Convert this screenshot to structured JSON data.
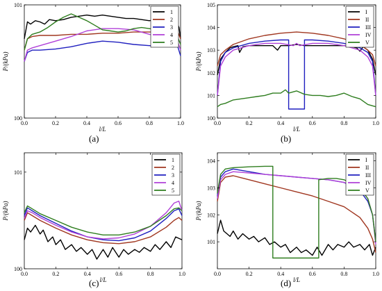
{
  "panels": [
    {
      "id": "a",
      "label": "(a)"
    },
    {
      "id": "b",
      "label": "(b)"
    },
    {
      "id": "c",
      "label": "(c)"
    },
    {
      "id": "d",
      "label": "(d)"
    }
  ],
  "chart_data": [
    {
      "id": "a",
      "type": "line",
      "xlabel": "l/L",
      "ylabel": "P/(kPa)",
      "xlim": [
        0,
        1
      ],
      "ylim": [
        100,
        101
      ],
      "xticks": [
        "0.0",
        "0.2",
        "0.4",
        "0.6",
        "0.8",
        "1.0"
      ],
      "yticks": [
        {
          "v": 100,
          "t": "100"
        },
        {
          "v": 101,
          "t": "101"
        }
      ],
      "legend": "top-right",
      "grid": false,
      "series": [
        {
          "name": "1",
          "color": "#000000",
          "x": [
            0,
            0.02,
            0.04,
            0.07,
            0.1,
            0.13,
            0.16,
            0.2,
            0.25,
            0.3,
            0.35,
            0.4,
            0.45,
            0.5,
            0.55,
            0.6,
            0.65,
            0.7,
            0.75,
            0.8,
            0.85,
            0.9,
            0.94,
            0.97,
            0.99,
            1.0
          ],
          "y": [
            100.7,
            100.85,
            100.83,
            100.86,
            100.85,
            100.83,
            100.87,
            100.86,
            100.87,
            100.89,
            100.9,
            100.91,
            100.9,
            100.91,
            100.9,
            100.89,
            100.88,
            100.88,
            100.87,
            100.86,
            100.87,
            100.86,
            100.85,
            100.86,
            100.8,
            100.7
          ]
        },
        {
          "name": "2",
          "color": "#a0361f",
          "x": [
            0,
            0.02,
            0.05,
            0.1,
            0.2,
            0.3,
            0.4,
            0.5,
            0.6,
            0.7,
            0.8,
            0.9,
            0.95,
            0.98,
            1.0
          ],
          "y": [
            100.6,
            100.7,
            100.72,
            100.73,
            100.73,
            100.74,
            100.74,
            100.75,
            100.75,
            100.76,
            100.76,
            100.76,
            100.77,
            100.77,
            100.7
          ]
        },
        {
          "name": "3",
          "color": "#1f1fbf",
          "x": [
            0,
            0.02,
            0.05,
            0.1,
            0.2,
            0.3,
            0.4,
            0.5,
            0.6,
            0.7,
            0.8,
            0.9,
            0.95,
            0.98,
            1.0
          ],
          "y": [
            100.5,
            100.58,
            100.6,
            100.6,
            100.61,
            100.63,
            100.66,
            100.68,
            100.67,
            100.65,
            100.64,
            100.64,
            100.65,
            100.64,
            100.55
          ]
        },
        {
          "name": "4",
          "color": "#b040d8",
          "x": [
            0,
            0.02,
            0.05,
            0.1,
            0.2,
            0.3,
            0.4,
            0.5,
            0.6,
            0.7,
            0.8,
            0.9,
            0.95,
            0.98,
            1.0
          ],
          "y": [
            100.5,
            100.6,
            100.62,
            100.64,
            100.68,
            100.72,
            100.77,
            100.79,
            100.79,
            100.78,
            100.74,
            100.71,
            100.7,
            100.68,
            100.6
          ]
        },
        {
          "name": "5",
          "color": "#2e7d1e",
          "x": [
            0,
            0.02,
            0.05,
            0.1,
            0.15,
            0.2,
            0.25,
            0.3,
            0.35,
            0.4,
            0.45,
            0.5,
            0.55,
            0.6,
            0.65,
            0.7,
            0.75,
            0.8,
            0.85,
            0.9,
            0.95,
            0.98,
            1.0
          ],
          "y": [
            100.6,
            100.7,
            100.74,
            100.76,
            100.8,
            100.85,
            100.89,
            100.92,
            100.89,
            100.86,
            100.82,
            100.78,
            100.77,
            100.76,
            100.77,
            100.79,
            100.8,
            100.79,
            100.78,
            100.77,
            100.75,
            100.72,
            100.65
          ]
        }
      ]
    },
    {
      "id": "b",
      "type": "line",
      "xlabel": "l/L",
      "ylabel": "P/(kPa)",
      "xlim": [
        0,
        1
      ],
      "ylim": [
        100,
        105
      ],
      "xticks": [
        "0.0",
        "0.2",
        "0.4",
        "0.6",
        "0.8",
        "1.0"
      ],
      "yticks": [
        {
          "v": 100,
          "t": "100"
        },
        {
          "v": 101,
          "t": "101"
        },
        {
          "v": 102,
          "t": "102"
        },
        {
          "v": 103,
          "t": "103"
        },
        {
          "v": 104,
          "t": "104"
        },
        {
          "v": 105,
          "t": "105"
        }
      ],
      "legend": "top-right",
      "grid": false,
      "series": [
        {
          "name": "I",
          "color": "#000000",
          "x": [
            0,
            0.02,
            0.05,
            0.08,
            0.1,
            0.13,
            0.14,
            0.16,
            0.2,
            0.25,
            0.3,
            0.35,
            0.38,
            0.4,
            0.45,
            0.5,
            0.55,
            0.6,
            0.65,
            0.7,
            0.75,
            0.8,
            0.85,
            0.88,
            0.9,
            0.92,
            0.95,
            0.98,
            1.0
          ],
          "y": [
            101.9,
            102.6,
            102.9,
            103.1,
            103.15,
            103.2,
            102.9,
            103.15,
            103.2,
            103.2,
            103.2,
            103.2,
            103.0,
            103.2,
            103.2,
            103.25,
            103.2,
            103.2,
            103.2,
            103.2,
            103.2,
            103.2,
            103.15,
            103.1,
            102.95,
            103.15,
            103.0,
            102.6,
            101.9
          ]
        },
        {
          "name": "II",
          "color": "#a0361f",
          "x": [
            0,
            0.02,
            0.05,
            0.1,
            0.2,
            0.3,
            0.4,
            0.5,
            0.6,
            0.7,
            0.8,
            0.9,
            0.95,
            0.98,
            1.0
          ],
          "y": [
            102.3,
            102.8,
            103.0,
            103.25,
            103.5,
            103.65,
            103.75,
            103.8,
            103.75,
            103.65,
            103.5,
            103.25,
            103.0,
            102.8,
            102.3
          ]
        },
        {
          "name": "III",
          "color": "#1f1fbf",
          "x": [
            0,
            0.02,
            0.05,
            0.1,
            0.2,
            0.3,
            0.4,
            0.45,
            0.45,
            0.55,
            0.55,
            0.6,
            0.7,
            0.8,
            0.9,
            0.95,
            0.98,
            1.0
          ],
          "y": [
            101.0,
            102.5,
            102.9,
            103.1,
            103.3,
            103.4,
            103.45,
            103.45,
            100.4,
            100.4,
            103.45,
            103.45,
            103.4,
            103.3,
            103.1,
            102.9,
            102.5,
            101.0
          ]
        },
        {
          "name": "IV",
          "color": "#b040d8",
          "x": [
            0,
            0.02,
            0.05,
            0.1,
            0.2,
            0.3,
            0.4,
            0.48,
            0.5,
            0.52,
            0.6,
            0.7,
            0.8,
            0.9,
            0.95,
            0.98,
            1.0
          ],
          "y": [
            101.0,
            102.3,
            102.7,
            103.0,
            103.2,
            103.3,
            103.3,
            103.2,
            103.3,
            103.2,
            103.3,
            103.3,
            103.2,
            103.0,
            102.7,
            102.3,
            101.0
          ]
        },
        {
          "name": "V",
          "color": "#2e7d1e",
          "x": [
            0,
            0.02,
            0.05,
            0.1,
            0.15,
            0.2,
            0.25,
            0.3,
            0.35,
            0.4,
            0.43,
            0.45,
            0.5,
            0.55,
            0.6,
            0.65,
            0.7,
            0.75,
            0.8,
            0.85,
            0.9,
            0.95,
            1.0
          ],
          "y": [
            100.5,
            100.6,
            100.65,
            100.8,
            100.85,
            100.9,
            100.95,
            101.0,
            101.1,
            101.1,
            101.25,
            101.1,
            101.2,
            101.05,
            101.0,
            101.0,
            100.95,
            101.0,
            101.1,
            100.95,
            100.85,
            100.6,
            100.5
          ]
        }
      ]
    },
    {
      "id": "c",
      "type": "line",
      "xlabel": "l/L",
      "ylabel": "P/(kPa)",
      "xlim": [
        0,
        1
      ],
      "ylim": [
        100,
        101.2
      ],
      "xticks": [
        "0.0",
        "0.2",
        "0.4",
        "0.6",
        "0.8",
        "1.0"
      ],
      "yticks": [
        {
          "v": 100,
          "t": "100"
        },
        {
          "v": 101,
          "t": "101"
        }
      ],
      "legend": "top-right",
      "grid": false,
      "series": [
        {
          "name": "1",
          "color": "#000000",
          "x": [
            0,
            0.02,
            0.04,
            0.07,
            0.1,
            0.12,
            0.15,
            0.18,
            0.2,
            0.23,
            0.26,
            0.3,
            0.33,
            0.36,
            0.4,
            0.43,
            0.46,
            0.5,
            0.53,
            0.56,
            0.6,
            0.63,
            0.66,
            0.7,
            0.73,
            0.76,
            0.8,
            0.83,
            0.86,
            0.9,
            0.93,
            0.96,
            1.0
          ],
          "y": [
            100.3,
            100.42,
            100.38,
            100.45,
            100.36,
            100.4,
            100.28,
            100.33,
            100.25,
            100.3,
            100.2,
            100.25,
            100.18,
            100.22,
            100.15,
            100.2,
            100.1,
            100.2,
            100.12,
            100.22,
            100.12,
            100.2,
            100.15,
            100.2,
            100.17,
            100.22,
            100.18,
            100.25,
            100.2,
            100.28,
            100.22,
            100.33,
            100.3
          ]
        },
        {
          "name": "2",
          "color": "#a0361f",
          "x": [
            0,
            0.02,
            0.05,
            0.1,
            0.2,
            0.3,
            0.4,
            0.5,
            0.6,
            0.7,
            0.8,
            0.9,
            0.95,
            0.98,
            1.0
          ],
          "y": [
            100.5,
            100.58,
            100.55,
            100.5,
            100.42,
            100.35,
            100.3,
            100.27,
            100.26,
            100.28,
            100.33,
            100.43,
            100.5,
            100.53,
            100.5
          ]
        },
        {
          "name": "3",
          "color": "#1f1fbf",
          "x": [
            0,
            0.02,
            0.05,
            0.1,
            0.2,
            0.3,
            0.4,
            0.5,
            0.6,
            0.7,
            0.8,
            0.9,
            0.95,
            0.98,
            1.0
          ],
          "y": [
            100.55,
            100.63,
            100.6,
            100.55,
            100.47,
            100.39,
            100.33,
            100.3,
            100.29,
            100.32,
            100.39,
            100.52,
            100.6,
            100.62,
            100.55
          ]
        },
        {
          "name": "4",
          "color": "#b040d8",
          "x": [
            0,
            0.02,
            0.05,
            0.1,
            0.2,
            0.3,
            0.4,
            0.5,
            0.6,
            0.7,
            0.8,
            0.9,
            0.95,
            0.98,
            1.0
          ],
          "y": [
            100.52,
            100.6,
            100.58,
            100.53,
            100.45,
            100.38,
            100.33,
            100.31,
            100.32,
            100.36,
            100.44,
            100.58,
            100.68,
            100.7,
            100.6
          ]
        },
        {
          "name": "5",
          "color": "#2e7d1e",
          "x": [
            0,
            0.02,
            0.05,
            0.1,
            0.2,
            0.3,
            0.4,
            0.5,
            0.6,
            0.7,
            0.8,
            0.9,
            0.95,
            0.98,
            1.0
          ],
          "y": [
            100.58,
            100.65,
            100.62,
            100.57,
            100.5,
            100.43,
            100.38,
            100.35,
            100.35,
            100.38,
            100.44,
            100.55,
            100.62,
            100.63,
            100.6
          ]
        }
      ]
    },
    {
      "id": "d",
      "type": "line",
      "xlabel": "l/L",
      "ylabel": "P/(kPa)",
      "xlim": [
        0,
        1
      ],
      "ylim": [
        100,
        104.3
      ],
      "xticks": [
        "0.0",
        "0.2",
        "0.4",
        "0.6",
        "0.8",
        "1.0"
      ],
      "yticks": [
        {
          "v": 101,
          "t": "101"
        },
        {
          "v": 102,
          "t": "102"
        },
        {
          "v": 103,
          "t": "103"
        },
        {
          "v": 104,
          "t": "104"
        }
      ],
      "legend": "top-right",
      "grid": false,
      "series": [
        {
          "name": "I",
          "color": "#000000",
          "x": [
            0,
            0.02,
            0.04,
            0.06,
            0.08,
            0.1,
            0.13,
            0.16,
            0.2,
            0.23,
            0.26,
            0.3,
            0.33,
            0.36,
            0.4,
            0.43,
            0.46,
            0.5,
            0.53,
            0.56,
            0.6,
            0.63,
            0.66,
            0.7,
            0.73,
            0.76,
            0.8,
            0.83,
            0.86,
            0.9,
            0.93,
            0.96,
            0.98,
            1.0
          ],
          "y": [
            101.3,
            101.8,
            101.4,
            101.3,
            101.2,
            101.4,
            101.1,
            101.3,
            101.1,
            101.2,
            101.0,
            101.15,
            100.9,
            101.0,
            100.8,
            100.9,
            100.6,
            100.8,
            100.6,
            100.7,
            100.5,
            100.8,
            100.5,
            100.9,
            100.7,
            100.9,
            100.8,
            101.0,
            100.8,
            100.9,
            100.7,
            100.9,
            100.5,
            100.8
          ]
        },
        {
          "name": "II",
          "color": "#a0361f",
          "x": [
            0,
            0.02,
            0.05,
            0.1,
            0.2,
            0.3,
            0.4,
            0.5,
            0.6,
            0.7,
            0.8,
            0.9,
            0.95,
            0.98,
            1.0
          ],
          "y": [
            102.5,
            103.2,
            103.4,
            103.45,
            103.3,
            103.15,
            103.0,
            102.85,
            102.7,
            102.5,
            102.3,
            101.9,
            101.5,
            101.1,
            100.6
          ]
        },
        {
          "name": "III",
          "color": "#1f1fbf",
          "x": [
            0,
            0.02,
            0.05,
            0.1,
            0.2,
            0.3,
            0.4,
            0.5,
            0.6,
            0.7,
            0.8,
            0.9,
            0.95,
            0.98,
            1.0
          ],
          "y": [
            102.7,
            103.4,
            103.6,
            103.7,
            103.6,
            103.5,
            103.45,
            103.4,
            103.35,
            103.3,
            103.2,
            102.9,
            102.5,
            102.0,
            101.0
          ]
        },
        {
          "name": "IV",
          "color": "#b040d8",
          "x": [
            0,
            0.02,
            0.05,
            0.1,
            0.2,
            0.3,
            0.4,
            0.5,
            0.6,
            0.7,
            0.8,
            0.9,
            0.95,
            0.98,
            1.0
          ],
          "y": [
            102.6,
            103.3,
            103.5,
            103.6,
            103.55,
            103.5,
            103.45,
            103.4,
            103.35,
            103.3,
            103.2,
            103.0,
            102.6,
            102.0,
            100.9
          ]
        },
        {
          "name": "V",
          "color": "#2e7d1e",
          "x": [
            0,
            0.02,
            0.05,
            0.1,
            0.2,
            0.3,
            0.35,
            0.35,
            0.64,
            0.64,
            0.7,
            0.75,
            0.8,
            0.9,
            0.95,
            0.98,
            1.0
          ],
          "y": [
            102.8,
            103.5,
            103.7,
            103.75,
            103.78,
            103.8,
            103.8,
            100.4,
            100.4,
            103.3,
            103.35,
            103.35,
            103.3,
            103.0,
            102.6,
            102.0,
            101.0
          ]
        }
      ]
    }
  ]
}
